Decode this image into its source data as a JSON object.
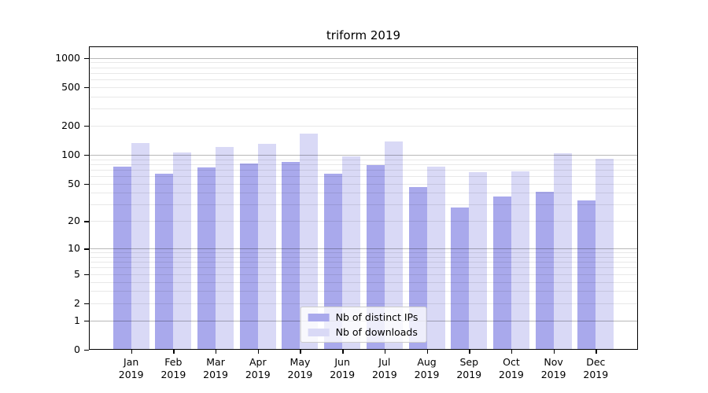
{
  "chart_data": {
    "type": "bar",
    "title": "triform 2019",
    "categories": [
      {
        "month": "Jan",
        "year": "2019"
      },
      {
        "month": "Feb",
        "year": "2019"
      },
      {
        "month": "Mar",
        "year": "2019"
      },
      {
        "month": "Apr",
        "year": "2019"
      },
      {
        "month": "May",
        "year": "2019"
      },
      {
        "month": "Jun",
        "year": "2019"
      },
      {
        "month": "Jul",
        "year": "2019"
      },
      {
        "month": "Aug",
        "year": "2019"
      },
      {
        "month": "Sep",
        "year": "2019"
      },
      {
        "month": "Oct",
        "year": "2019"
      },
      {
        "month": "Nov",
        "year": "2019"
      },
      {
        "month": "Dec",
        "year": "2019"
      }
    ],
    "series": [
      {
        "name": "Nb of distinct IPs",
        "color": "#a9a9ec",
        "values": [
          75,
          63,
          74,
          82,
          85,
          63,
          78,
          46,
          28,
          37,
          41,
          33
        ]
      },
      {
        "name": "Nb of downloads",
        "color": "#d9d9f6",
        "values": [
          133,
          106,
          121,
          130,
          167,
          96,
          137,
          76,
          66,
          67,
          104,
          91
        ]
      }
    ],
    "xlabel": "",
    "ylabel": "",
    "yscale": "log1p",
    "yticks": [
      0,
      1,
      2,
      5,
      10,
      20,
      50,
      100,
      200,
      500,
      1000
    ],
    "grid_major": [
      1,
      10,
      100,
      1000
    ],
    "grid_minor": [
      2,
      3,
      4,
      5,
      6,
      7,
      8,
      9,
      20,
      30,
      40,
      50,
      60,
      70,
      80,
      90,
      200,
      300,
      400,
      500,
      600,
      700,
      800,
      900
    ],
    "ylim": [
      0,
      1315
    ],
    "grid": true,
    "legend_position": "lower center"
  }
}
